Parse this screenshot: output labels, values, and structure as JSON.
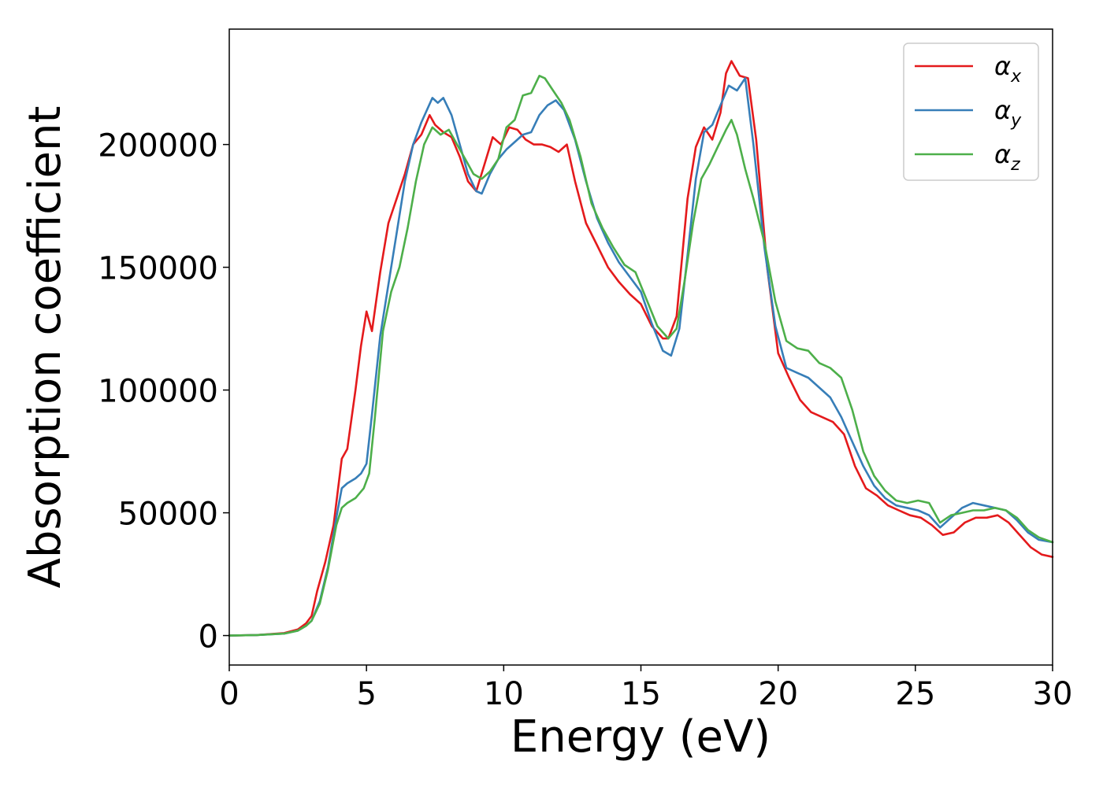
{
  "chart_data": {
    "type": "line",
    "title": "",
    "xlabel": "Energy (eV)",
    "ylabel": "Absorption coefficient",
    "xlim": [
      0,
      30
    ],
    "ylim": [
      -12000,
      247000
    ],
    "xticks": [
      0,
      5,
      10,
      15,
      20,
      25,
      30
    ],
    "yticks": [
      0,
      50000,
      100000,
      150000,
      200000
    ],
    "grid": false,
    "legend_position": "top-right",
    "series": [
      {
        "name": "α",
        "subscript": "x",
        "color": "#e41a1c",
        "x": [
          0,
          1,
          2,
          2.5,
          2.8,
          3,
          3.2,
          3.5,
          3.8,
          4.1,
          4.3,
          4.6,
          4.8,
          5.0,
          5.2,
          5.5,
          5.8,
          6.1,
          6.4,
          6.7,
          7.0,
          7.3,
          7.5,
          7.8,
          8.1,
          8.4,
          8.7,
          9.0,
          9.3,
          9.6,
          9.9,
          10.2,
          10.5,
          10.8,
          11.1,
          11.4,
          11.7,
          12.0,
          12.3,
          12.6,
          13.0,
          13.4,
          13.8,
          14.2,
          14.6,
          15.0,
          15.4,
          15.8,
          16.0,
          16.3,
          16.7,
          17.0,
          17.3,
          17.6,
          17.9,
          18.1,
          18.3,
          18.6,
          18.9,
          19.2,
          19.6,
          20.0,
          20.4,
          20.8,
          21.2,
          21.6,
          22.0,
          22.4,
          22.8,
          23.2,
          23.6,
          24.0,
          24.4,
          24.8,
          25.2,
          25.6,
          26.0,
          26.4,
          26.8,
          27.2,
          27.6,
          28.0,
          28.4,
          28.8,
          29.2,
          29.6,
          30.0
        ],
        "values": [
          0,
          200,
          1000,
          2500,
          5000,
          8000,
          18000,
          30000,
          45000,
          72000,
          76000,
          100000,
          118000,
          132000,
          124000,
          148000,
          168000,
          178000,
          188000,
          200000,
          204000,
          212000,
          208000,
          205000,
          203000,
          195000,
          185000,
          181000,
          192000,
          203000,
          200000,
          207000,
          206000,
          202000,
          200000,
          200000,
          199000,
          197000,
          200000,
          185000,
          168000,
          159000,
          150000,
          144000,
          139000,
          135000,
          126000,
          121000,
          121000,
          130000,
          178000,
          199000,
          207000,
          202000,
          213000,
          229000,
          234000,
          228000,
          227000,
          202000,
          150000,
          115000,
          105000,
          96000,
          91000,
          89000,
          87000,
          82000,
          69000,
          60000,
          57000,
          53000,
          51000,
          49000,
          48000,
          45000,
          41000,
          42000,
          46000,
          48000,
          48000,
          49000,
          46000,
          41000,
          36000,
          33000,
          32000
        ]
      },
      {
        "name": "α",
        "subscript": "y",
        "color": "#377eb8",
        "x": [
          0,
          1,
          2,
          2.5,
          2.8,
          3,
          3.3,
          3.6,
          3.9,
          4.1,
          4.3,
          4.6,
          4.8,
          5.0,
          5.2,
          5.5,
          5.8,
          6.1,
          6.4,
          6.7,
          7.0,
          7.4,
          7.6,
          7.8,
          8.1,
          8.4,
          8.7,
          9.0,
          9.2,
          9.5,
          9.8,
          10.1,
          10.4,
          10.7,
          11.0,
          11.3,
          11.6,
          11.9,
          12.2,
          12.6,
          13.0,
          13.4,
          13.8,
          14.2,
          14.6,
          15.0,
          15.4,
          15.8,
          16.1,
          16.4,
          16.7,
          17.0,
          17.3,
          17.6,
          17.9,
          18.2,
          18.5,
          18.8,
          19.1,
          19.5,
          19.9,
          20.3,
          20.7,
          21.1,
          21.5,
          21.9,
          22.3,
          22.7,
          23.1,
          23.5,
          23.9,
          24.3,
          24.7,
          25.1,
          25.5,
          25.9,
          26.3,
          26.7,
          27.1,
          27.5,
          27.9,
          28.3,
          28.7,
          29.1,
          29.5,
          30.0
        ],
        "values": [
          0,
          200,
          800,
          2000,
          4000,
          6000,
          14000,
          28000,
          48000,
          60000,
          62000,
          64000,
          66000,
          70000,
          90000,
          122000,
          143000,
          164000,
          185000,
          200000,
          209000,
          219000,
          217000,
          219000,
          212000,
          200000,
          188000,
          181000,
          180000,
          188000,
          194000,
          198000,
          201000,
          204000,
          205000,
          212000,
          216000,
          218000,
          214000,
          202000,
          185000,
          170000,
          160000,
          152000,
          146000,
          140000,
          127000,
          116000,
          114000,
          125000,
          155000,
          186000,
          205000,
          208000,
          216000,
          224000,
          222000,
          227000,
          200000,
          158000,
          126000,
          109000,
          107000,
          105000,
          101000,
          97000,
          89000,
          79000,
          69000,
          61000,
          56000,
          53000,
          52000,
          51000,
          49000,
          44000,
          48000,
          52000,
          54000,
          53000,
          52000,
          51000,
          47000,
          42000,
          39000,
          38000
        ]
      },
      {
        "name": "α",
        "subscript": "z",
        "color": "#4daf4a",
        "x": [
          0,
          1,
          2,
          2.5,
          2.8,
          3,
          3.3,
          3.6,
          3.9,
          4.1,
          4.3,
          4.6,
          4.9,
          5.1,
          5.3,
          5.6,
          5.9,
          6.2,
          6.5,
          6.8,
          7.1,
          7.4,
          7.7,
          8.0,
          8.3,
          8.6,
          8.9,
          9.2,
          9.5,
          9.8,
          10.1,
          10.4,
          10.7,
          11.0,
          11.3,
          11.5,
          11.8,
          12.1,
          12.4,
          12.8,
          13.2,
          13.6,
          14.0,
          14.4,
          14.8,
          15.2,
          15.6,
          16.0,
          16.3,
          16.6,
          16.9,
          17.2,
          17.5,
          17.8,
          18.1,
          18.3,
          18.5,
          18.8,
          19.1,
          19.5,
          19.9,
          20.3,
          20.7,
          21.1,
          21.5,
          21.9,
          22.3,
          22.7,
          23.1,
          23.5,
          23.9,
          24.3,
          24.7,
          25.1,
          25.5,
          25.9,
          26.3,
          26.7,
          27.1,
          27.5,
          27.9,
          28.3,
          28.7,
          29.1,
          29.5,
          30.0
        ],
        "values": [
          0,
          200,
          800,
          2000,
          4000,
          6000,
          13000,
          27000,
          45000,
          52000,
          54000,
          56000,
          60000,
          66000,
          88000,
          124000,
          140000,
          150000,
          166000,
          185000,
          200000,
          207000,
          204000,
          206000,
          200000,
          194000,
          188000,
          186000,
          189000,
          194000,
          207000,
          210000,
          220000,
          221000,
          228000,
          227000,
          222000,
          217000,
          210000,
          195000,
          176000,
          166000,
          158000,
          151000,
          148000,
          137000,
          126000,
          121000,
          125000,
          145000,
          168000,
          186000,
          192000,
          199000,
          206000,
          210000,
          204000,
          190000,
          178000,
          160000,
          136000,
          120000,
          117000,
          116000,
          111000,
          109000,
          105000,
          92000,
          75000,
          65000,
          59000,
          55000,
          54000,
          55000,
          54000,
          46000,
          49000,
          50000,
          51000,
          51000,
          52000,
          51000,
          48000,
          43000,
          40000,
          38000
        ]
      }
    ]
  }
}
